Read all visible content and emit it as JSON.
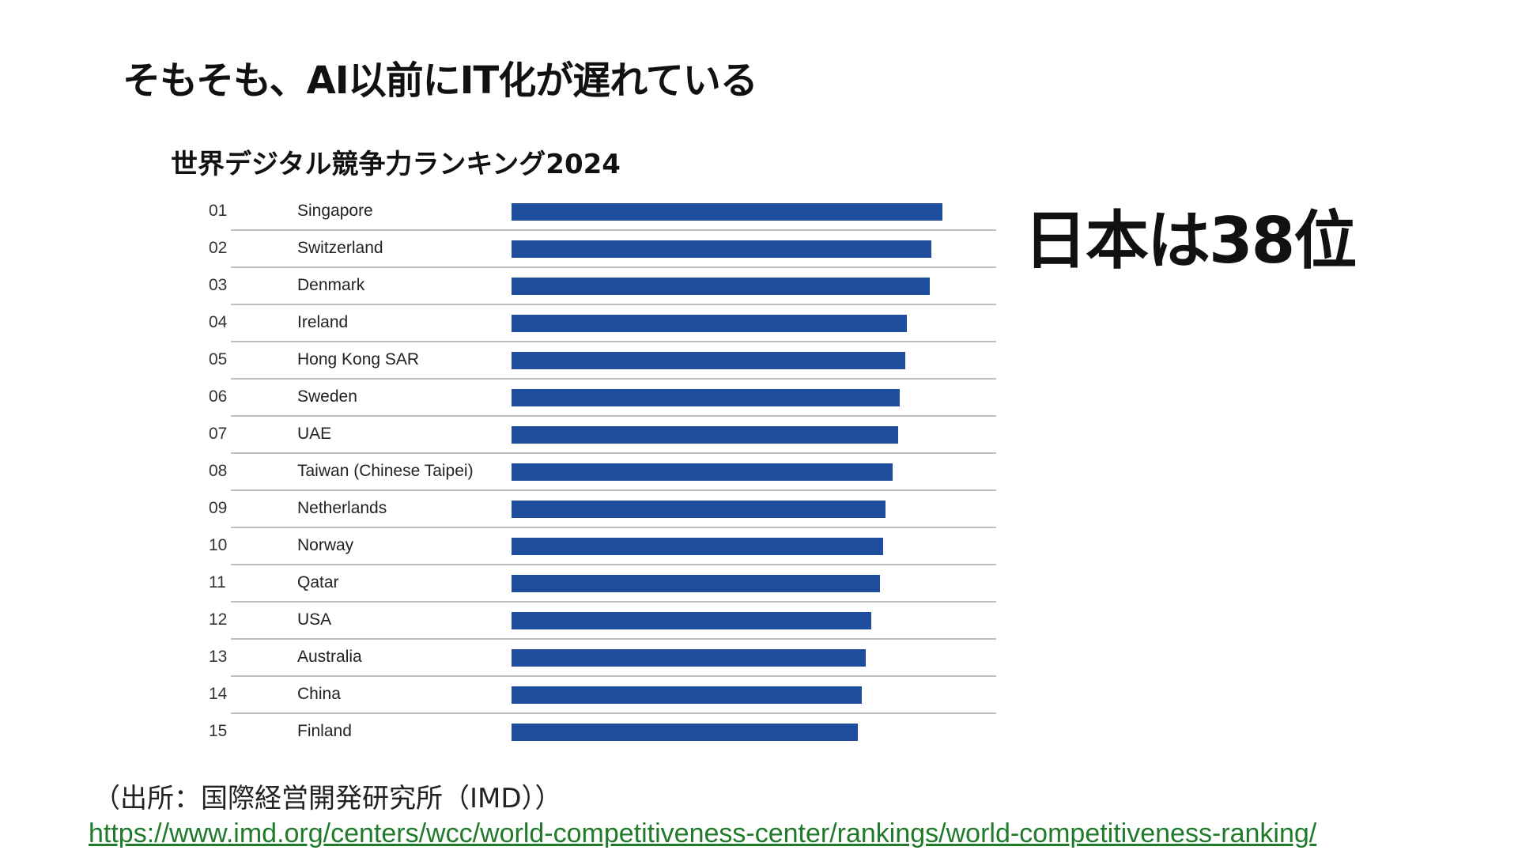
{
  "slide": {
    "title": "そもそも、AI以前にIT化が遅れている",
    "callout": "日本は38位",
    "source": "（出所：国際経営開発研究所（IMD））",
    "source_url": "https://www.imd.org/centers/wcc/world-competitiveness-center/rankings/world-competitiveness-ranking/"
  },
  "chart_data": {
    "type": "bar",
    "orientation": "horizontal",
    "title": "世界デジタル競争力ランキング2024",
    "ranks": [
      "01",
      "02",
      "03",
      "04",
      "05",
      "06",
      "07",
      "08",
      "09",
      "10",
      "11",
      "12",
      "13",
      "14",
      "15"
    ],
    "categories": [
      "Singapore",
      "Switzerland",
      "Denmark",
      "Ireland",
      "Hong Kong SAR",
      "Sweden",
      "UAE",
      "Taiwan (Chinese Taipei)",
      "Netherlands",
      "Norway",
      "Qatar",
      "USA",
      "Australia",
      "China",
      "Finland"
    ],
    "values": [
      100,
      97.5,
      97.0,
      91.7,
      91.4,
      90.1,
      89.7,
      88.4,
      86.8,
      86.3,
      85.5,
      83.5,
      82.2,
      81.2,
      80.3
    ],
    "xlim": [
      0,
      100
    ],
    "grid": false,
    "legend": "none",
    "colors": {
      "bar": "#1f4e9e",
      "divider": "#bdbdbd",
      "link": "#1f7a2a"
    }
  }
}
